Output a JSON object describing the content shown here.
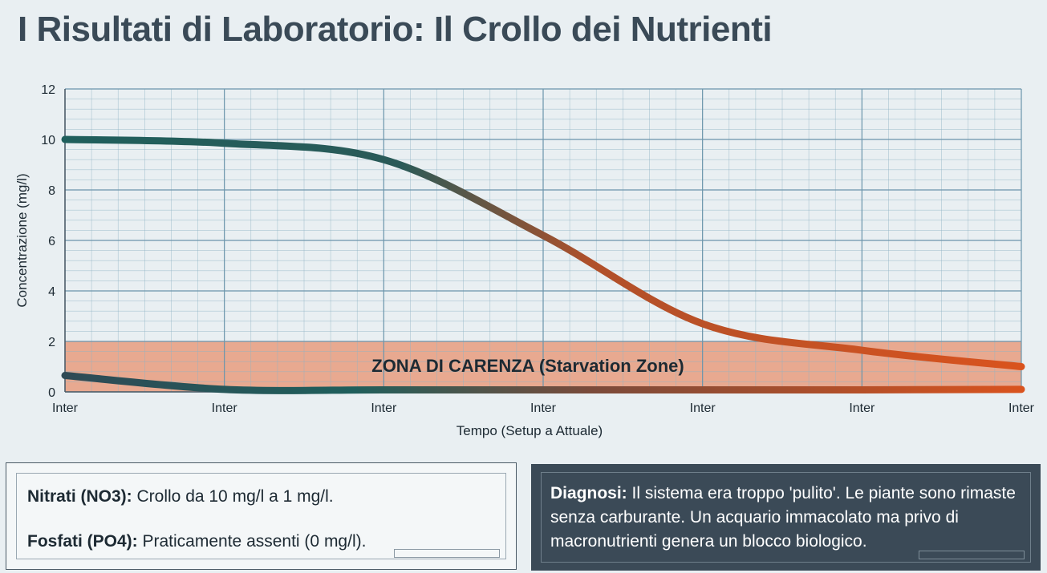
{
  "title": "I Risultati di Laboratorio: Il Crollo dei Nutrienti",
  "chart_data": {
    "type": "line",
    "xlabel": "Tempo (Setup a Attuale)",
    "ylabel": "Concentrazione (mg/l)",
    "ylim": [
      0,
      12
    ],
    "y_ticks": [
      0,
      2,
      4,
      6,
      8,
      10,
      12
    ],
    "x_tick_labels": [
      "Inter",
      "Inter",
      "Inter",
      "Inter",
      "Inter",
      "Inter",
      "Inter"
    ],
    "x": [
      0,
      1,
      2,
      3,
      4,
      5,
      6
    ],
    "grid": true,
    "band": {
      "y_from": 0,
      "y_to": 2,
      "label": "ZONA DI CARENZA (Starvation Zone)",
      "color": "#e8a48a"
    },
    "series": [
      {
        "values": [
          10.0,
          9.85,
          9.2,
          6.2,
          2.7,
          1.65,
          1.0
        ],
        "color_start": "#1f5f5c",
        "color_end": "#d9531e"
      },
      {
        "values": [
          0.65,
          0.1,
          0.08,
          0.08,
          0.08,
          0.08,
          0.1
        ],
        "color_start": "#2f4a55",
        "color_end": "#d9531e"
      }
    ]
  },
  "info": {
    "nitrati_label": "Nitrati (NO3):",
    "nitrati_text": " Crollo da 10 mg/l a 1 mg/l.",
    "fosfati_label": "Fosfati (PO4):",
    "fosfati_text": " Praticamente assenti (0 mg/l)."
  },
  "diagnosis": {
    "label": "Diagnosi:",
    "text": " Il sistema era troppo 'pulito'. Le piante sono rimaste senza carburante. Un acquario immacolato ma privo di macronutrienti genera un blocco biologico."
  }
}
